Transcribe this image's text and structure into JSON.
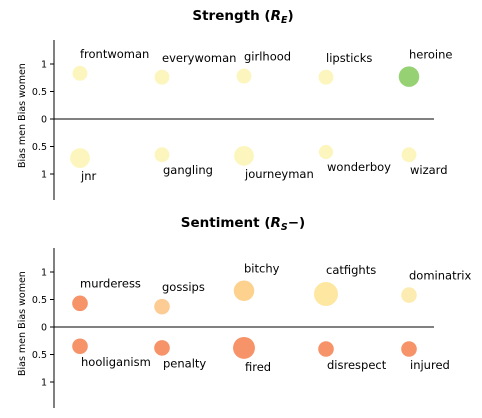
{
  "chart_data": [
    {
      "type": "scatter",
      "title": "Strength",
      "title_subscript": "E",
      "ylabel_top": "Bias women",
      "ylabel_bottom": "Bias men",
      "yticks_top": [
        "1",
        "0.5",
        "0"
      ],
      "yticks_bottom": [
        "0.5",
        "1"
      ],
      "ylim": [
        -1.5,
        1.5
      ],
      "grid": false,
      "points": [
        {
          "word": "frontwoman",
          "col": 0,
          "y": 0.83,
          "color": "#fcf5b3",
          "size": 0.35
        },
        {
          "word": "everywoman",
          "col": 1,
          "y": 0.76,
          "color": "#fcf5b3",
          "size": 0.35
        },
        {
          "word": "girlhood",
          "col": 2,
          "y": 0.78,
          "color": "#fcf5b3",
          "size": 0.35
        },
        {
          "word": "lipsticks",
          "col": 3,
          "y": 0.76,
          "color": "#fcf5b3",
          "size": 0.35
        },
        {
          "word": "heroine",
          "col": 4,
          "y": 0.77,
          "color": "#84ca5c",
          "size": 0.75
        },
        {
          "word": "jnr",
          "col": 0,
          "y": -0.71,
          "color": "#fcf5b3",
          "size": 0.7
        },
        {
          "word": "gangling",
          "col": 1,
          "y": -0.65,
          "color": "#fcf5b3",
          "size": 0.35
        },
        {
          "word": "journeyman",
          "col": 2,
          "y": -0.67,
          "color": "#fcf5b3",
          "size": 0.7
        },
        {
          "word": "wonderboy",
          "col": 3,
          "y": -0.6,
          "color": "#fcf5b3",
          "size": 0.3
        },
        {
          "word": "wizard",
          "col": 4,
          "y": -0.65,
          "color": "#fcf5b3",
          "size": 0.35
        }
      ]
    },
    {
      "type": "scatter",
      "title": "Sentiment",
      "title_subscript": "S",
      "title_suffix": "−",
      "ylabel_top": "Bias women",
      "ylabel_bottom": "Bias men",
      "yticks_top": [
        "1",
        "0.5",
        "0"
      ],
      "yticks_bottom": [
        "0.5",
        "1"
      ],
      "ylim": [
        -1.5,
        1.5
      ],
      "grid": false,
      "points": [
        {
          "word": "murderess",
          "col": 0,
          "y": 0.43,
          "color": "#f5804d",
          "size": 0.4
        },
        {
          "word": "gossips",
          "col": 1,
          "y": 0.37,
          "color": "#fdc383",
          "size": 0.4
        },
        {
          "word": "bitchy",
          "col": 2,
          "y": 0.66,
          "color": "#fdc97a",
          "size": 0.75
        },
        {
          "word": "catfights",
          "col": 3,
          "y": 0.6,
          "color": "#fde390",
          "size": 1.0
        },
        {
          "word": "dominatrix",
          "col": 4,
          "y": 0.58,
          "color": "#fde9a3",
          "size": 0.4
        },
        {
          "word": "hooliganism",
          "col": 0,
          "y": -0.35,
          "color": "#f5804d",
          "size": 0.4
        },
        {
          "word": "penalty",
          "col": 1,
          "y": -0.38,
          "color": "#f5804d",
          "size": 0.4
        },
        {
          "word": "fired",
          "col": 2,
          "y": -0.38,
          "color": "#f5804d",
          "size": 0.85
        },
        {
          "word": "disrespect",
          "col": 3,
          "y": -0.4,
          "color": "#f5804d",
          "size": 0.4
        },
        {
          "word": "injured",
          "col": 4,
          "y": -0.4,
          "color": "#f5804d",
          "size": 0.4
        }
      ]
    }
  ]
}
